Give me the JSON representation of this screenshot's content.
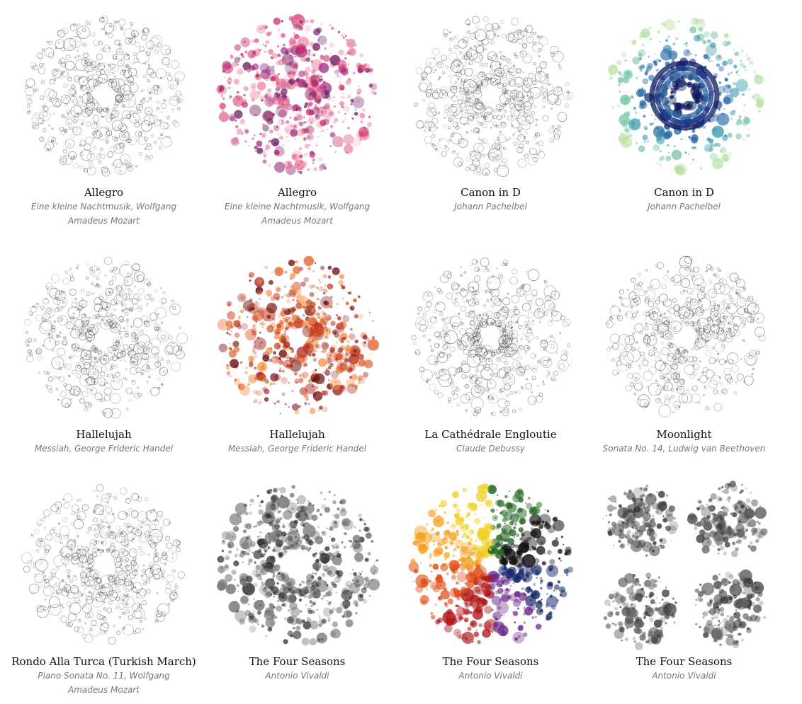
{
  "gallery": {
    "items": [
      {
        "title": "Allegro",
        "subtitle": "Eine kleine Nachtmusik, Wolfgang Amadeus Mozart",
        "palette": "mono",
        "seed": 11
      },
      {
        "title": "Allegro",
        "subtitle": "Eine kleine Nachtmusik, Wolfgang Amadeus Mozart",
        "palette": "magenta",
        "seed": 12
      },
      {
        "title": "Canon in D",
        "subtitle": "Johann Pachelbel",
        "palette": "mono",
        "seed": 13
      },
      {
        "title": "Canon in D",
        "subtitle": "Johann Pachelbel",
        "palette": "ocean",
        "seed": 14
      },
      {
        "title": "Hallelujah",
        "subtitle": "Messiah, George Frideric Handel",
        "palette": "mono",
        "seed": 15
      },
      {
        "title": "Hallelujah",
        "subtitle": "Messiah, George Frideric Handel",
        "palette": "fire",
        "seed": 16
      },
      {
        "title": "La Cathédrale Engloutie",
        "subtitle": "Claude Debussy",
        "palette": "mono",
        "seed": 17
      },
      {
        "title": "Moonlight",
        "subtitle": "Sonata No. 14, Ludwig van Beethoven",
        "palette": "mono",
        "seed": 18
      },
      {
        "title": "Rondo Alla Turca (Turkish March)",
        "subtitle": "Piano Sonata No. 11, Wolfgang Amadeus Mozart",
        "palette": "mono",
        "seed": 19
      },
      {
        "title": "The Four Seasons",
        "subtitle": "Antonio Vivaldi",
        "palette": "mono-fill",
        "seed": 20
      },
      {
        "title": "The Four Seasons",
        "subtitle": "Antonio Vivaldi",
        "palette": "rainbow",
        "seed": 21
      },
      {
        "title": "The Four Seasons",
        "subtitle": "Antonio Vivaldi",
        "palette": "mono-quad",
        "seed": 22
      }
    ]
  },
  "palettes": {
    "mono": [
      "#555555"
    ],
    "mono-fill": [
      "#333333",
      "#777777"
    ],
    "mono-quad": [
      "#333333",
      "#666666"
    ],
    "magenta": [
      "#6b1a5e",
      "#9b2a7a",
      "#d02a6a",
      "#e8608a",
      "#f5a0b5"
    ],
    "ocean": [
      "#0d1a5e",
      "#1f3a8a",
      "#2e6fa8",
      "#3d9fb0",
      "#7cc8a8",
      "#b8e0a0"
    ],
    "fire": [
      "#6b0a0a",
      "#a01818",
      "#c83a1a",
      "#e0602a",
      "#f5954a"
    ],
    "rainbow": [
      "#1a2a6b",
      "#6b2a8a",
      "#b01818",
      "#e0501a",
      "#f5a020",
      "#f0d020",
      "#2a6a2a",
      "#111111"
    ]
  }
}
